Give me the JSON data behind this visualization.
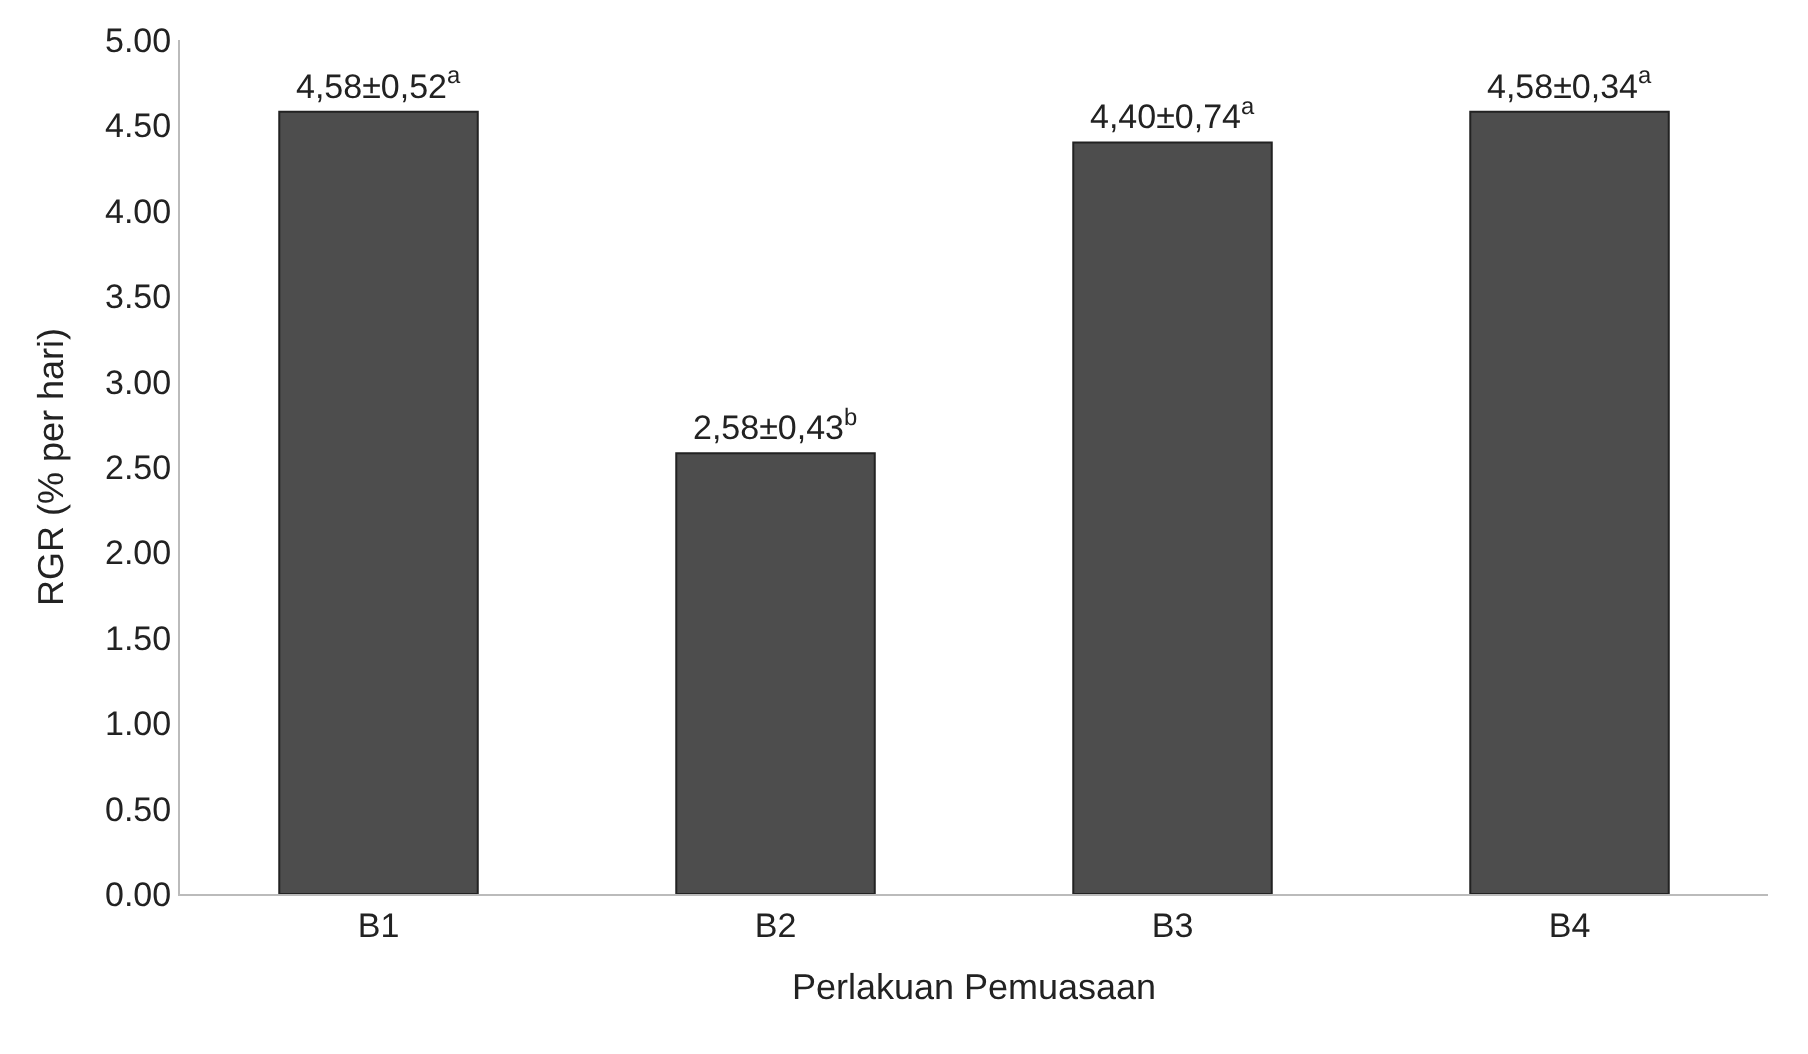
{
  "chart_data": {
    "type": "bar",
    "xlabel": "Perlakuan Pemuasaan",
    "ylabel": "RGR (% per hari)",
    "categories": [
      "B1",
      "B2",
      "B3",
      "B4"
    ],
    "values": [
      4.58,
      2.58,
      4.4,
      4.58
    ],
    "value_labels": [
      "4,58±0,52$^{a}$",
      "2,58±0,43$^{b}$",
      "4,40±0,74$^{a}$",
      "4,58±0,34$^{a}$"
    ],
    "color": "#4d4d4d",
    "ylim": [
      0,
      5
    ],
    "yticks": [
      {
        "value": 0,
        "label": "0.00"
      },
      {
        "value": 0.5,
        "label": "0.50"
      },
      {
        "value": 1,
        "label": "1.00"
      },
      {
        "value": 1.5,
        "label": "1.50"
      },
      {
        "value": 2,
        "label": "2.00"
      },
      {
        "value": 2.5,
        "label": "2.50"
      },
      {
        "value": 3,
        "label": "3.00"
      },
      {
        "value": 3.5,
        "label": "3.50"
      },
      {
        "value": 4,
        "label": "4.00"
      },
      {
        "value": 4.5,
        "label": "4.50"
      },
      {
        "value": 5,
        "label": "5.00"
      }
    ],
    "legend": false
  }
}
